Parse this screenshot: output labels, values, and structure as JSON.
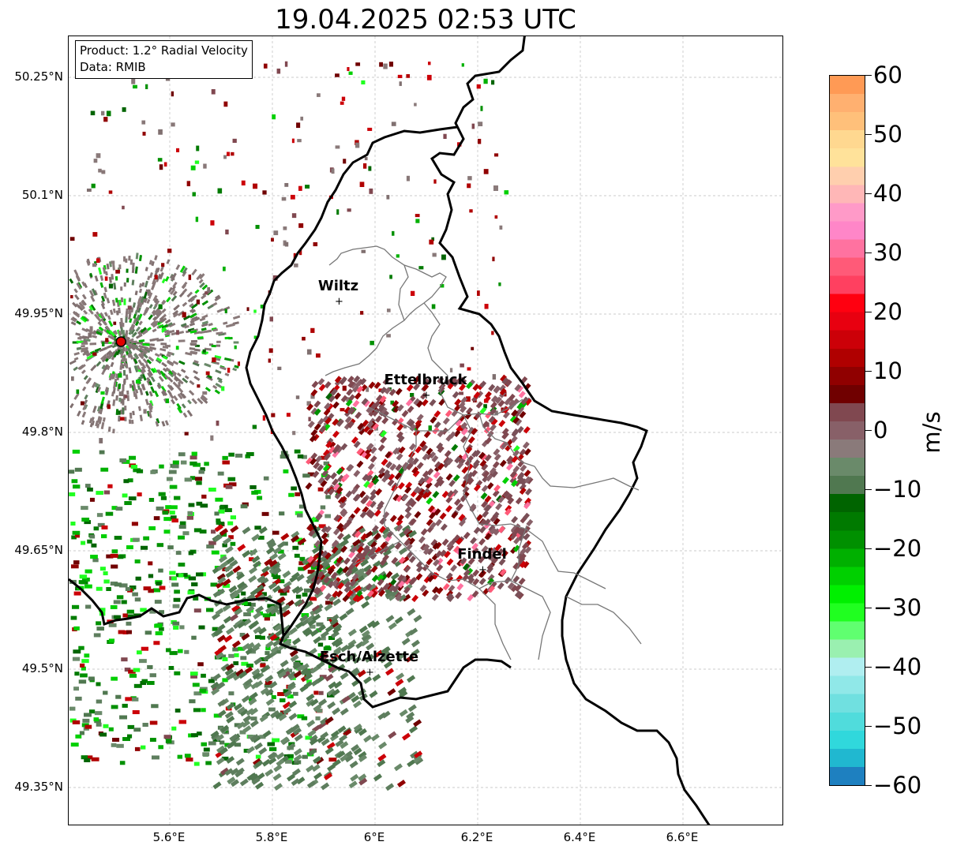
{
  "title": "19.04.2025 02:53 UTC",
  "info": {
    "product": "Product: 1.2° Radial Velocity",
    "data": "Data: RMIB"
  },
  "lat_ticks": [
    "50.25°N",
    "50.1°N",
    "49.95°N",
    "49.8°N",
    "49.65°N",
    "49.5°N",
    "49.35°N"
  ],
  "lon_ticks": [
    "5.6°E",
    "5.8°E",
    "6°E",
    "6.2°E",
    "6.4°E",
    "6.6°E"
  ],
  "cities": [
    {
      "name": "Wiltz",
      "lon": 5.93,
      "lat": 49.967
    },
    {
      "name": "Ettelbruck",
      "lon": 6.1,
      "lat": 49.848
    },
    {
      "name": "Findel",
      "lon": 6.21,
      "lat": 49.627
    },
    {
      "name": "Esch/Alzette",
      "lon": 5.99,
      "lat": 49.497
    }
  ],
  "radar_site": {
    "lon": 5.505,
    "lat": 49.915
  },
  "colorbar": {
    "unit": "m/s",
    "range": [
      -60,
      60
    ],
    "tick_labels": [
      "60",
      "50",
      "40",
      "30",
      "20",
      "10",
      "0",
      "−10",
      "−20",
      "−30",
      "−40",
      "−50",
      "−60"
    ],
    "colors_top_to_bottom": [
      "#ff9a55",
      "#ffb070",
      "#ffc07a",
      "#ffd890",
      "#ffe29a",
      "#ffcfae",
      "#ffb7b7",
      "#ff9ac8",
      "#ff86c8",
      "#ff72a0",
      "#ff5a78",
      "#ff4060",
      "#ff0010",
      "#e80010",
      "#cc0008",
      "#b00000",
      "#900000",
      "#700000",
      "#804850",
      "#886068",
      "#8a7a7a",
      "#6a8a6a",
      "#507850",
      "#006400",
      "#007a00",
      "#009000",
      "#00b000",
      "#00d000",
      "#00f000",
      "#20ff20",
      "#60ff70",
      "#9af0b0",
      "#b0eef0",
      "#90e8e8",
      "#70e0e0",
      "#50dcdc",
      "#30d8dc",
      "#20b8d0",
      "#1e80c0"
    ],
    "color_breaks_note": ""
  },
  "map": {
    "lon_range": [
      5.4,
      6.8
    ],
    "lat_range": [
      49.3,
      50.3
    ]
  }
}
